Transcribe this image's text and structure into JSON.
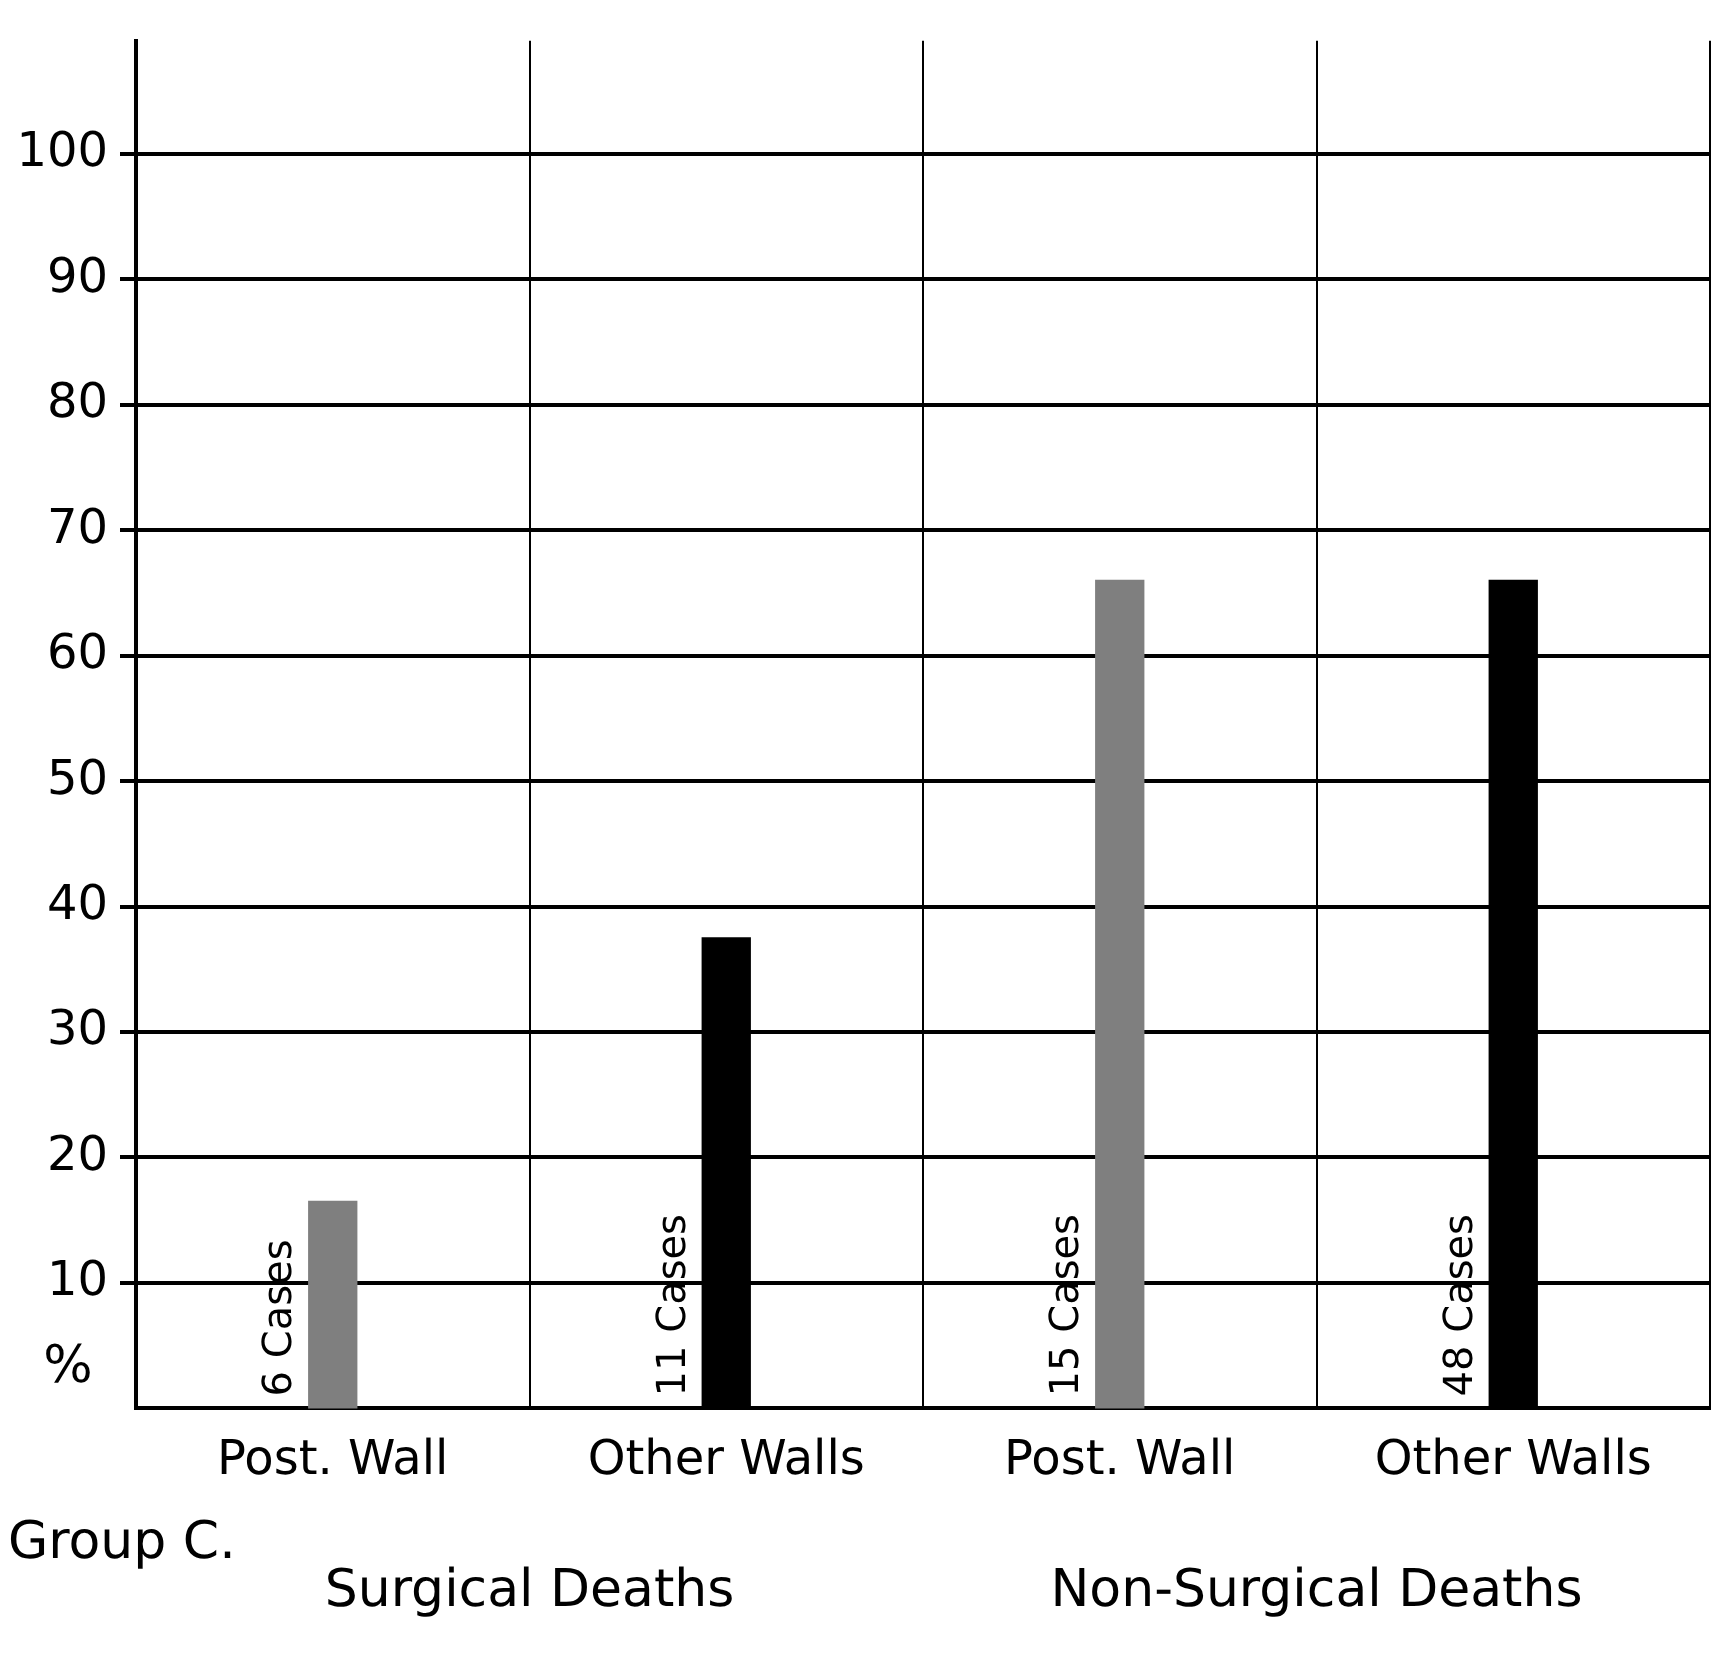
{
  "chart_data": {
    "type": "bar",
    "ylabel": "%",
    "categories": [
      "Post. Wall",
      "Other Walls",
      "Post. Wall",
      "Other Walls"
    ],
    "values": [
      16.5,
      37.5,
      66,
      66
    ],
    "colors": [
      "#7f7f7f",
      "#000000",
      "#7f7f7f",
      "#000000"
    ],
    "ylim": [
      0,
      109
    ],
    "yticks": [
      10,
      20,
      30,
      40,
      50,
      60,
      70,
      80,
      90,
      100
    ],
    "grid": true,
    "annotations": [
      "Group C.",
      "Surgical Deaths",
      "Non-Surgical Deaths",
      "6 Cases",
      "11 Cases",
      "15 Cases",
      "48 Cases"
    ]
  }
}
